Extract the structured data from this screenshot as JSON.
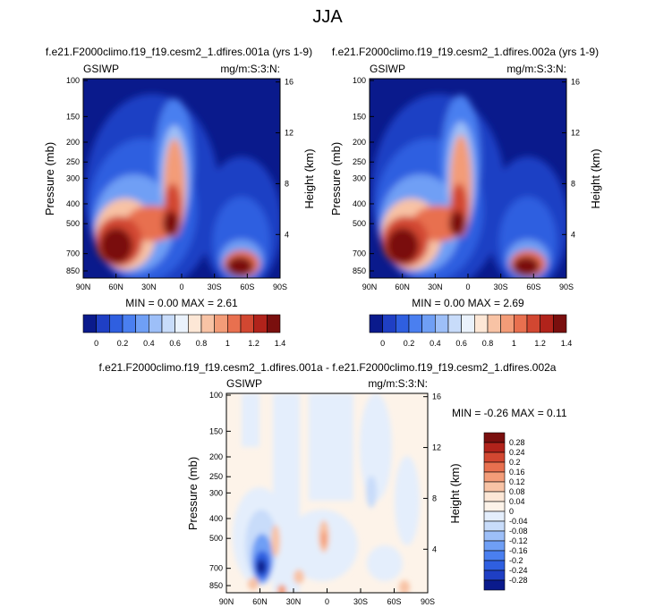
{
  "page_title": "JJA",
  "chart_data": [
    {
      "type": "heatmap",
      "title": "f.e21.F2000climo.f19_f19.cesm2_1.dfires.001a (yrs 1-9)",
      "corner_left": "GSIWP",
      "corner_right": "mg/m:S:3:N:",
      "xlabel": "",
      "ylabel": "Pressure (mb)",
      "y2label": "Height (km)",
      "x_ticks": [
        "90N",
        "60N",
        "30N",
        "0",
        "30S",
        "60S",
        "90S"
      ],
      "y_ticks": [
        "100",
        "150",
        "200",
        "250",
        "300",
        "400",
        "500",
        "700",
        "850"
      ],
      "y2_ticks": [
        "16",
        "12",
        "8",
        "4"
      ],
      "min_max": "MIN =  0.00  MAX =  2.61",
      "stats": {
        "min": 0.0,
        "max": 2.61
      },
      "colorbar": {
        "labels": [
          "0",
          "0.2",
          "0.4",
          "0.6",
          "0.8",
          "1",
          "1.2",
          "1.4"
        ],
        "colors": [
          "#0a1a8c",
          "#1f3fc4",
          "#2f5fe0",
          "#4a7ff0",
          "#6f9ff5",
          "#9dbff8",
          "#c8dcfa",
          "#eaf2fc",
          "#fde7d6",
          "#f8c3a5",
          "#f39c78",
          "#e8704f",
          "#d24731",
          "#b1231b",
          "#7a0f0e"
        ]
      }
    },
    {
      "type": "heatmap",
      "title": "f.e21.F2000climo.f19_f19.cesm2_1.dfires.002a (yrs 1-9)",
      "corner_left": "GSIWP",
      "corner_right": "mg/m:S:3:N:",
      "xlabel": "",
      "ylabel": "Pressure (mb)",
      "y2label": "Height (km)",
      "x_ticks": [
        "90N",
        "60N",
        "30N",
        "0",
        "30S",
        "60S",
        "90S"
      ],
      "y_ticks": [
        "100",
        "150",
        "200",
        "250",
        "300",
        "400",
        "500",
        "700",
        "850"
      ],
      "y2_ticks": [
        "16",
        "12",
        "8",
        "4"
      ],
      "min_max": "MIN =  0.00  MAX =  2.69",
      "stats": {
        "min": 0.0,
        "max": 2.69
      },
      "colorbar": {
        "labels": [
          "0",
          "0.2",
          "0.4",
          "0.6",
          "0.8",
          "1",
          "1.2",
          "1.4"
        ],
        "colors": [
          "#0a1a8c",
          "#1f3fc4",
          "#2f5fe0",
          "#4a7ff0",
          "#6f9ff5",
          "#9dbff8",
          "#c8dcfa",
          "#eaf2fc",
          "#fde7d6",
          "#f8c3a5",
          "#f39c78",
          "#e8704f",
          "#d24731",
          "#b1231b",
          "#7a0f0e"
        ]
      }
    },
    {
      "type": "heatmap",
      "title": "f.e21.F2000climo.f19_f19.cesm2_1.dfires.001a - f.e21.F2000climo.f19_f19.cesm2_1.dfires.002a",
      "corner_left": "GSIWP",
      "corner_right": "mg/m:S:3:N:",
      "xlabel": "",
      "ylabel": "Pressure (mb)",
      "y2label": "Height (km)",
      "x_ticks": [
        "90N",
        "60N",
        "30N",
        "0",
        "30S",
        "60S",
        "90S"
      ],
      "y_ticks": [
        "100",
        "150",
        "200",
        "250",
        "300",
        "400",
        "500",
        "700",
        "850"
      ],
      "y2_ticks": [
        "16",
        "12",
        "8",
        "4"
      ],
      "min_max": "MIN = -0.26  MAX =  0.11",
      "stats": {
        "min": -0.26,
        "max": 0.11
      },
      "colorbar": {
        "labels": [
          "0.28",
          "0.24",
          "0.2",
          "0.16",
          "0.12",
          "0.08",
          "0.04",
          "0",
          "-0.04",
          "-0.08",
          "-0.12",
          "-0.16",
          "-0.2",
          "-0.24",
          "-0.28"
        ],
        "colors": [
          "#7a0f0e",
          "#b1231b",
          "#d24731",
          "#e8704f",
          "#f39c78",
          "#f8c3a5",
          "#fde7d6",
          "#fdf3e9",
          "#e4eefc",
          "#c8dcfa",
          "#9dbff8",
          "#6f9ff5",
          "#4a7ff0",
          "#2f5fe0",
          "#1f3fc4",
          "#0a1a8c"
        ]
      }
    }
  ]
}
